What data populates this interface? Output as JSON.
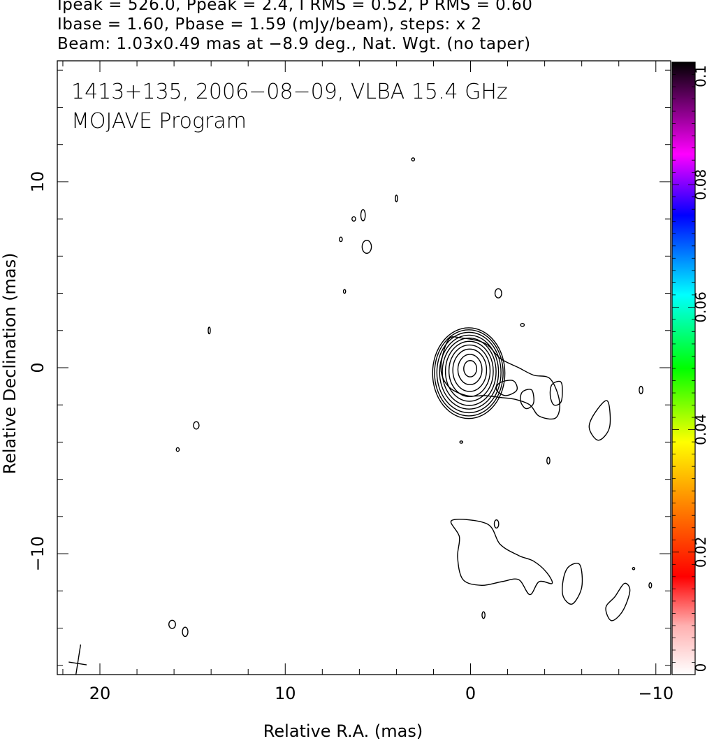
{
  "header": {
    "line1": "Ipeak = 526.0, Ppeak = 2.4, I RMS = 0.52, P RMS = 0.60",
    "line2": "Ibase = 1.60, Pbase = 1.59 (mJy/beam), steps: x 2",
    "line3": "Beam: 1.03x0.49 mas at −8.9 deg., Nat. Wgt. (no taper)"
  },
  "chart_data": {
    "type": "contour",
    "title": "1413+135, 2006−08−09, VLBA 15.4 GHz",
    "subtitle": "MOJAVE Program",
    "xlabel": "Relative R.A. (mas)",
    "ylabel": "Relative Declination (mas)",
    "xlim": [
      22.3,
      -10.8
    ],
    "ylim": [
      -16.5,
      16.5
    ],
    "xticks": [
      20,
      10,
      0,
      -10
    ],
    "xtick_labels": [
      "20",
      "10",
      "0",
      "−10"
    ],
    "yticks": [
      10,
      0,
      -10
    ],
    "ytick_labels": [
      "10",
      "0",
      "−10"
    ],
    "colorbar": {
      "range": [
        0,
        0.1
      ],
      "ticks": [
        0,
        0.02,
        0.04,
        0.06,
        0.08,
        0.1
      ],
      "tick_labels": [
        "0",
        "0.02",
        "0.04",
        "0.06",
        "0.08",
        "0.1"
      ],
      "colors": [
        "#ffffff",
        "#ff0000",
        "#ff8800",
        "#ffff00",
        "#00ff00",
        "#00ffff",
        "#0000ff",
        "#ff00ff",
        "#000000"
      ]
    },
    "core": {
      "x": 0.0,
      "y": 0.0,
      "levels": [
        0.9,
        0.75,
        0.62,
        0.52,
        0.43,
        0.35,
        0.28,
        0.21,
        0.15,
        0.1
      ]
    },
    "jet_contours": [
      [
        [
          1.2,
          1.5
        ],
        [
          0.5,
          1.6
        ],
        [
          -0.8,
          1.3
        ],
        [
          -1.6,
          0.5
        ],
        [
          -2.6,
          0.0
        ],
        [
          -3.4,
          -0.4
        ],
        [
          -4.3,
          -0.6
        ],
        [
          -4.8,
          -1.8
        ],
        [
          -4.6,
          -2.7
        ],
        [
          -3.7,
          -2.6
        ],
        [
          -3.2,
          -2.0
        ],
        [
          -2.4,
          -1.7
        ],
        [
          -1.6,
          -1.6
        ],
        [
          -0.8,
          -1.5
        ],
        [
          0.2,
          -1.5
        ],
        [
          1.2,
          -1.0
        ],
        [
          1.6,
          0.0
        ]
      ],
      [
        [
          -1.6,
          -0.8
        ],
        [
          -2.3,
          -0.7
        ],
        [
          -2.5,
          -1.2
        ],
        [
          -1.9,
          -1.5
        ],
        [
          -1.4,
          -1.2
        ]
      ],
      [
        [
          -2.8,
          -1.3
        ],
        [
          -3.3,
          -1.2
        ],
        [
          -3.4,
          -1.9
        ],
        [
          -3.0,
          -2.2
        ],
        [
          -2.7,
          -1.8
        ]
      ],
      [
        [
          -4.4,
          -0.9
        ],
        [
          -4.9,
          -0.8
        ],
        [
          -4.9,
          -1.8
        ],
        [
          -4.5,
          -2.0
        ],
        [
          -4.3,
          -1.5
        ]
      ],
      [
        [
          -7.4,
          -1.8
        ],
        [
          -7.5,
          -3.2
        ],
        [
          -6.9,
          -3.9
        ],
        [
          -6.4,
          -3.2
        ],
        [
          -6.8,
          -2.3
        ]
      ],
      [
        [
          1.0,
          -8.2
        ],
        [
          -0.9,
          -8.4
        ],
        [
          -1.6,
          -9.5
        ],
        [
          -2.6,
          -10.1
        ],
        [
          -3.4,
          -10.4
        ],
        [
          -4.1,
          -11.0
        ],
        [
          -4.4,
          -11.6
        ],
        [
          -3.7,
          -11.5
        ],
        [
          -3.2,
          -12.2
        ],
        [
          -2.6,
          -11.4
        ],
        [
          -1.7,
          -11.5
        ],
        [
          -0.6,
          -11.7
        ],
        [
          0.4,
          -11.4
        ],
        [
          0.7,
          -10.2
        ],
        [
          0.6,
          -9.1
        ]
      ],
      [
        [
          -5.3,
          -10.7
        ],
        [
          -5.9,
          -10.6
        ],
        [
          -6.0,
          -11.8
        ],
        [
          -5.5,
          -12.7
        ],
        [
          -5.0,
          -12.3
        ],
        [
          -5.0,
          -11.4
        ]
      ],
      [
        [
          -8.3,
          -11.6
        ],
        [
          -8.6,
          -12.0
        ],
        [
          -8.2,
          -13.1
        ],
        [
          -7.6,
          -13.6
        ],
        [
          -7.3,
          -12.9
        ],
        [
          -7.8,
          -12.3
        ]
      ]
    ],
    "blobs": [
      [
        5.6,
        6.5,
        0.25,
        0.35
      ],
      [
        5.8,
        8.2,
        0.12,
        0.3
      ],
      [
        6.3,
        8.0,
        0.1,
        0.12
      ],
      [
        7.0,
        6.9,
        0.08,
        0.12
      ],
      [
        3.1,
        11.2,
        0.08,
        0.08
      ],
      [
        4.0,
        9.1,
        0.03,
        0.18
      ],
      [
        6.8,
        4.1,
        0.06,
        0.1
      ],
      [
        14.1,
        2.0,
        0.05,
        0.18
      ],
      [
        -1.5,
        4.0,
        0.18,
        0.25
      ],
      [
        -2.8,
        2.3,
        0.1,
        0.08
      ],
      [
        -9.2,
        -1.2,
        0.1,
        0.2
      ],
      [
        -4.2,
        -5.0,
        0.08,
        0.18
      ],
      [
        0.5,
        -4.0,
        0.08,
        0.06
      ],
      [
        14.8,
        -3.1,
        0.15,
        0.2
      ],
      [
        15.8,
        -4.4,
        0.08,
        0.1
      ],
      [
        -1.4,
        -8.4,
        0.12,
        0.22
      ],
      [
        -0.7,
        -13.3,
        0.08,
        0.18
      ],
      [
        16.1,
        -13.8,
        0.18,
        0.22
      ],
      [
        15.4,
        -14.2,
        0.15,
        0.25
      ],
      [
        -8.8,
        -10.8,
        0.06,
        0.06
      ],
      [
        -9.7,
        -11.7,
        0.07,
        0.14
      ]
    ],
    "beam": {
      "x": 21.2,
      "y": -15.9,
      "major": 1.03,
      "minor": 0.49,
      "pa_deg": -8.9
    }
  }
}
